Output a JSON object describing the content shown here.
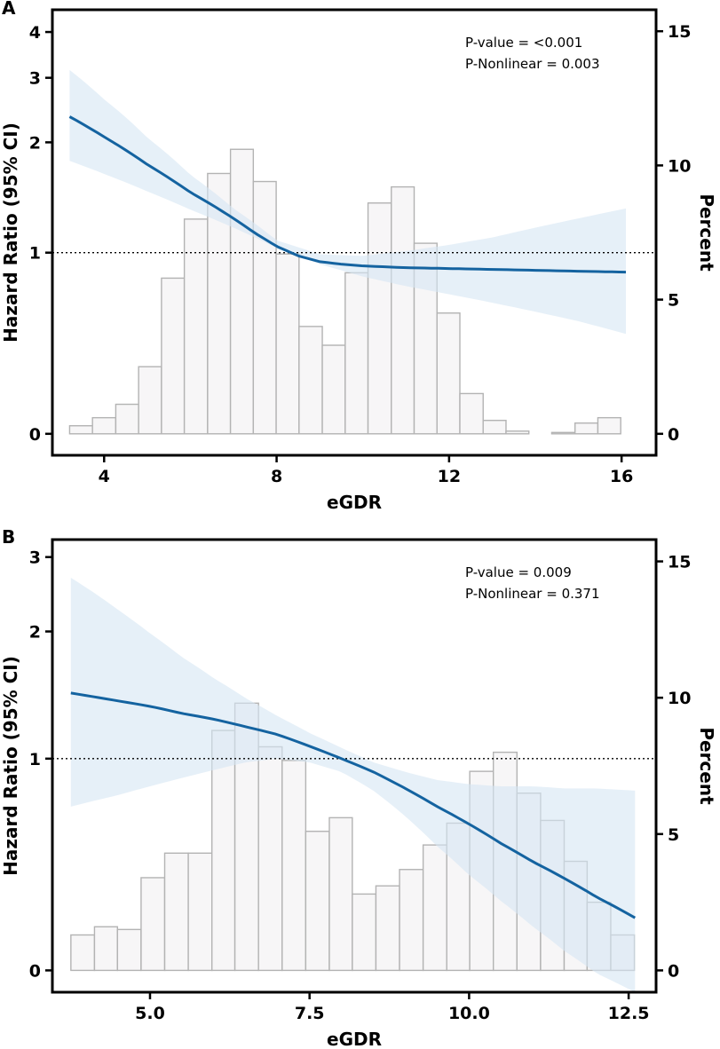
{
  "chart_data": [
    {
      "type": "bar",
      "panel_label": "A",
      "xlabel": "eGDR",
      "ylabel": "Hazard Ratio (95% CI)",
      "y2label": "Percent",
      "xlim": [
        2.8,
        16.8
      ],
      "x_ticks": [
        4,
        8,
        12,
        16
      ],
      "x_tick_labels": [
        "4",
        "8",
        "12",
        "16"
      ],
      "hr_axis": {
        "scale": "log",
        "data_min": 0.28,
        "data_max": 4.6,
        "ticks": [
          1,
          2,
          3,
          4
        ],
        "tick_labels": [
          "1",
          "2",
          "3",
          "4"
        ],
        "zero_label": "0"
      },
      "percent_axis": {
        "ylim": [
          -0.8,
          15.8
        ],
        "ticks": [
          0,
          5,
          10,
          15
        ],
        "tick_labels": [
          "0",
          "5",
          "10",
          "15"
        ]
      },
      "histogram": {
        "bin_edges": [
          3.2,
          3.73,
          4.27,
          4.8,
          5.33,
          5.86,
          6.4,
          6.93,
          7.46,
          7.99,
          8.52,
          9.06,
          9.59,
          10.12,
          10.66,
          11.19,
          11.72,
          12.25,
          12.79,
          13.32,
          13.85,
          14.38,
          14.92,
          15.45,
          15.98
        ],
        "percent": [
          0.3,
          0.6,
          1.1,
          2.5,
          5.8,
          8.0,
          9.7,
          10.6,
          9.4,
          6.7,
          4.0,
          3.3,
          6.0,
          8.6,
          9.2,
          7.1,
          4.5,
          1.5,
          0.5,
          0.1,
          0.0,
          0.05,
          0.4,
          0.6
        ]
      },
      "series": [
        {
          "name": "Hazard Ratio",
          "x": [
            3.2,
            4,
            5,
            6,
            7,
            7.5,
            8,
            8.5,
            9,
            9.5,
            10,
            10.5,
            11,
            12,
            13,
            14,
            15,
            16.1
          ],
          "values": [
            2.35,
            2.07,
            1.74,
            1.46,
            1.24,
            1.13,
            1.04,
            0.98,
            0.945,
            0.93,
            0.92,
            0.915,
            0.91,
            0.905,
            0.9,
            0.895,
            0.89,
            0.885
          ]
        },
        {
          "name": "95% CI lower",
          "x": [
            3.2,
            4,
            5,
            6,
            7,
            8,
            9,
            10,
            11,
            12,
            13,
            14,
            15,
            16.1
          ],
          "values": [
            1.78,
            1.64,
            1.47,
            1.31,
            1.17,
            1.03,
            0.93,
            0.86,
            0.81,
            0.77,
            0.73,
            0.69,
            0.65,
            0.6
          ]
        },
        {
          "name": "95% CI upper",
          "x": [
            3.2,
            4,
            5,
            6,
            7,
            8,
            9,
            10,
            11,
            12,
            13,
            14,
            15,
            16.1
          ],
          "values": [
            3.15,
            2.62,
            2.06,
            1.63,
            1.32,
            1.08,
            0.99,
            0.98,
            1.01,
            1.05,
            1.1,
            1.17,
            1.24,
            1.32
          ]
        }
      ],
      "reference_line": 1,
      "annotations": [
        "P-value = <0.001",
        "P-Nonlinear = 0.003"
      ]
    },
    {
      "type": "bar",
      "panel_label": "B",
      "xlabel": "eGDR",
      "ylabel": "Hazard Ratio (95% CI)",
      "y2label": "Percent",
      "xlim": [
        3.47,
        12.93
      ],
      "x_ticks": [
        5,
        7.5,
        10,
        12.5
      ],
      "x_tick_labels": [
        "5.0",
        "7.5",
        "10.0",
        "12.5"
      ],
      "hr_axis": {
        "scale": "log",
        "data_min": 0.28,
        "data_max": 3.3,
        "ticks": [
          1,
          2,
          3
        ],
        "tick_labels": [
          "1",
          "2",
          "3"
        ],
        "zero_label": "0"
      },
      "percent_axis": {
        "ylim": [
          -0.8,
          15.8
        ],
        "ticks": [
          0,
          5,
          10,
          15
        ],
        "tick_labels": [
          "0",
          "5",
          "10",
          "15"
        ]
      },
      "histogram": {
        "bin_edges": [
          3.76,
          4.13,
          4.49,
          4.86,
          5.23,
          5.6,
          5.97,
          6.33,
          6.7,
          7.07,
          7.44,
          7.81,
          8.17,
          8.54,
          8.91,
          9.28,
          9.65,
          10.01,
          10.38,
          10.75,
          11.12,
          11.49,
          11.85,
          12.22,
          12.59
        ],
        "percent": [
          1.3,
          1.6,
          1.5,
          3.4,
          4.3,
          4.3,
          8.8,
          9.8,
          8.2,
          7.7,
          5.1,
          5.6,
          2.8,
          3.1,
          3.7,
          4.6,
          5.4,
          7.3,
          8.0,
          6.5,
          5.5,
          4.0,
          2.5,
          1.3
        ]
      },
      "series": [
        {
          "name": "Hazard Ratio",
          "x": [
            3.76,
            4.5,
            5,
            5.5,
            6,
            6.5,
            7,
            7.5,
            8,
            8.5,
            9,
            9.5,
            10,
            10.5,
            11,
            11.5,
            12,
            12.6
          ],
          "values": [
            1.43,
            1.37,
            1.33,
            1.28,
            1.24,
            1.19,
            1.14,
            1.07,
            1.0,
            0.93,
            0.85,
            0.77,
            0.7,
            0.63,
            0.57,
            0.52,
            0.47,
            0.42
          ]
        },
        {
          "name": "95% CI lower",
          "x": [
            3.76,
            4.5,
            5,
            5.5,
            6,
            6.5,
            7,
            7.5,
            8,
            8.5,
            9,
            9.5,
            10,
            10.5,
            11,
            11.5,
            12,
            12.6
          ],
          "values": [
            0.77,
            0.82,
            0.86,
            0.9,
            0.94,
            0.98,
            1.0,
            0.98,
            0.93,
            0.84,
            0.73,
            0.62,
            0.53,
            0.46,
            0.4,
            0.35,
            0.31,
            0.28
          ]
        },
        {
          "name": "95% CI upper",
          "x": [
            3.76,
            4.5,
            5,
            5.5,
            6,
            6.5,
            7,
            7.5,
            8,
            8.5,
            9,
            9.5,
            10,
            10.5,
            11,
            11.5,
            12,
            12.6
          ],
          "values": [
            2.68,
            2.25,
            1.98,
            1.74,
            1.55,
            1.39,
            1.26,
            1.15,
            1.06,
            0.98,
            0.93,
            0.89,
            0.87,
            0.86,
            0.86,
            0.85,
            0.85,
            0.84
          ]
        }
      ],
      "reference_line": 1,
      "annotations": [
        "P-value = 0.009",
        "P-Nonlinear = 0.371"
      ]
    }
  ]
}
